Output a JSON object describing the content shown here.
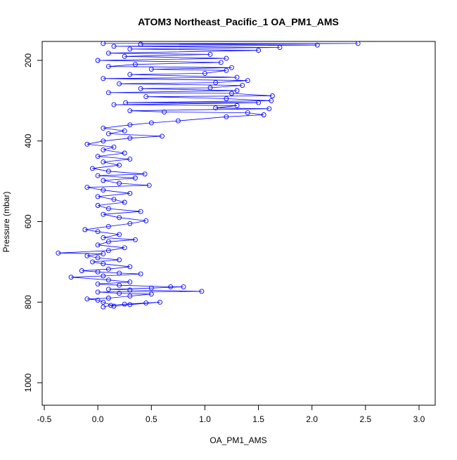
{
  "chart_data": {
    "type": "scatter",
    "title": "ATOM3 Northeast_Pacific_1 OA_PM1_AMS",
    "xlabel": "OA_PM1_AMS",
    "ylabel": "Pressure (mbar)",
    "xlim": [
      -0.5,
      3.0
    ],
    "ylim": [
      1050,
      150
    ],
    "y_reversed": true,
    "x_ticks": [
      -0.5,
      0.0,
      0.5,
      1.0,
      1.5,
      2.0,
      2.5,
      3.0
    ],
    "x_tick_labels": [
      "-0.5",
      "0.0",
      "0.5",
      "1.0",
      "1.5",
      "2.0",
      "2.5",
      "3.0"
    ],
    "y_ticks": [
      200,
      400,
      600,
      800,
      1000
    ],
    "y_tick_labels": [
      "200",
      "400",
      "600",
      "800",
      "1000"
    ],
    "grid": false,
    "legend": "none",
    "marker": "open-circle",
    "connected": true,
    "color": "#0000ff",
    "series": [
      {
        "values_note_free": true,
        "points": [
          [
            0.05,
            812
          ],
          [
            0.12,
            808
          ],
          [
            0.25,
            805
          ],
          [
            0.45,
            802
          ],
          [
            0.58,
            800
          ],
          [
            0.3,
            806
          ],
          [
            0.15,
            810
          ],
          [
            0.05,
            800
          ],
          [
            0.0,
            795
          ],
          [
            -0.1,
            792
          ],
          [
            0.1,
            790
          ],
          [
            0.3,
            785
          ],
          [
            0.5,
            780
          ],
          [
            0.2,
            778
          ],
          [
            0.0,
            775
          ],
          [
            0.97,
            773
          ],
          [
            0.3,
            770
          ],
          [
            0.1,
            768
          ],
          [
            0.5,
            765
          ],
          [
            0.8,
            762
          ],
          [
            0.68,
            762
          ],
          [
            0.2,
            758
          ],
          [
            0.0,
            755
          ],
          [
            0.3,
            750
          ],
          [
            0.1,
            745
          ],
          [
            -0.25,
            738
          ],
          [
            0.05,
            735
          ],
          [
            0.4,
            730
          ],
          [
            0.2,
            728
          ],
          [
            0.0,
            725
          ],
          [
            -0.15,
            722
          ],
          [
            0.1,
            718
          ],
          [
            0.3,
            712
          ],
          [
            0.05,
            705
          ],
          [
            -0.05,
            700
          ],
          [
            0.2,
            695
          ],
          [
            0.0,
            690
          ],
          [
            -0.1,
            685
          ],
          [
            0.05,
            680
          ],
          [
            -0.37,
            678
          ],
          [
            0.1,
            672
          ],
          [
            0.25,
            665
          ],
          [
            0.0,
            658
          ],
          [
            0.1,
            650
          ],
          [
            0.35,
            645
          ],
          [
            0.05,
            640
          ],
          [
            0.2,
            632
          ],
          [
            0.0,
            625
          ],
          [
            -0.12,
            620
          ],
          [
            0.1,
            612
          ],
          [
            0.3,
            605
          ],
          [
            0.45,
            598
          ],
          [
            0.2,
            590
          ],
          [
            0.05,
            582
          ],
          [
            0.4,
            575
          ],
          [
            0.1,
            568
          ],
          [
            0.0,
            560
          ],
          [
            0.25,
            552
          ],
          [
            0.15,
            545
          ],
          [
            0.0,
            538
          ],
          [
            0.3,
            530
          ],
          [
            0.05,
            522
          ],
          [
            -0.1,
            515
          ],
          [
            0.48,
            510
          ],
          [
            0.2,
            505
          ],
          [
            0.05,
            498
          ],
          [
            0.35,
            492
          ],
          [
            0.0,
            486
          ],
          [
            0.44,
            482
          ],
          [
            0.1,
            475
          ],
          [
            -0.05,
            468
          ],
          [
            0.2,
            460
          ],
          [
            0.05,
            452
          ],
          [
            0.3,
            445
          ],
          [
            0.0,
            438
          ],
          [
            0.25,
            430
          ],
          [
            0.05,
            422
          ],
          [
            0.15,
            415
          ],
          [
            -0.1,
            408
          ],
          [
            0.05,
            400
          ],
          [
            0.3,
            393
          ],
          [
            0.6,
            388
          ],
          [
            0.1,
            382
          ],
          [
            0.25,
            375
          ],
          [
            0.05,
            368
          ],
          [
            0.3,
            360
          ],
          [
            0.5,
            355
          ],
          [
            0.75,
            350
          ],
          [
            1.2,
            340
          ],
          [
            1.55,
            335
          ],
          [
            1.4,
            330
          ],
          [
            0.62,
            328
          ],
          [
            0.3,
            325
          ],
          [
            1.6,
            320
          ],
          [
            1.1,
            318
          ],
          [
            1.3,
            312
          ],
          [
            0.15,
            310
          ],
          [
            1.5,
            305
          ],
          [
            0.26,
            305
          ],
          [
            1.62,
            300
          ],
          [
            1.2,
            295
          ],
          [
            0.45,
            290
          ],
          [
            1.63,
            288
          ],
          [
            1.25,
            282
          ],
          [
            0.1,
            280
          ],
          [
            1.3,
            275
          ],
          [
            0.4,
            270
          ],
          [
            1.05,
            268
          ],
          [
            1.35,
            262
          ],
          [
            0.2,
            258
          ],
          [
            1.1,
            255
          ],
          [
            1.4,
            250
          ],
          [
            0.05,
            245
          ],
          [
            1.3,
            242
          ],
          [
            0.3,
            235
          ],
          [
            1.0,
            232
          ],
          [
            1.2,
            225
          ],
          [
            0.5,
            222
          ],
          [
            1.25,
            218
          ],
          [
            0.1,
            215
          ],
          [
            0.35,
            210
          ],
          [
            1.15,
            205
          ],
          [
            0.0,
            200
          ],
          [
            1.2,
            195
          ],
          [
            0.25,
            190
          ],
          [
            1.05,
            185
          ],
          [
            0.1,
            182
          ],
          [
            1.5,
            175
          ],
          [
            0.3,
            172
          ],
          [
            1.7,
            168
          ],
          [
            0.15,
            165
          ],
          [
            2.05,
            162
          ],
          [
            0.4,
            160
          ],
          [
            2.43,
            158
          ],
          [
            0.05,
            158
          ]
        ]
      }
    ]
  }
}
